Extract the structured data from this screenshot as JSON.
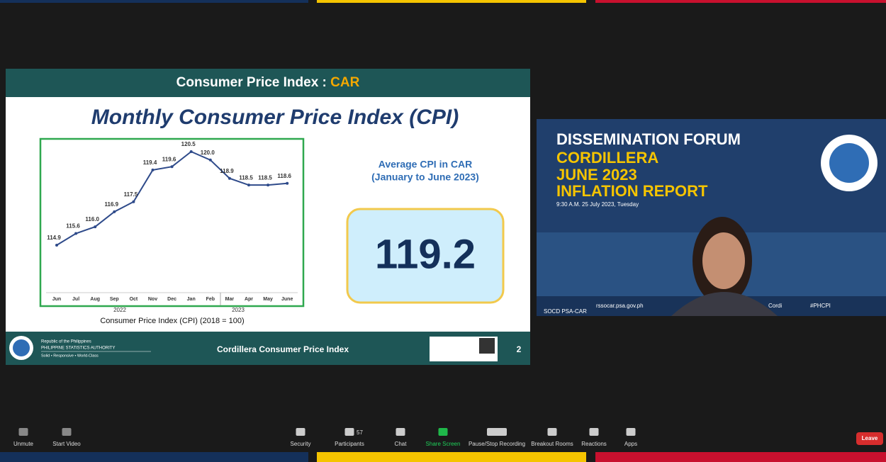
{
  "slide": {
    "header_title": "Consumer Price Index : ",
    "header_highlight": "CAR",
    "title": "Monthly Consumer Price Index (CPI)",
    "chart": {
      "type": "line",
      "categories": [
        "Jun",
        "Jul",
        "Aug",
        "Sep",
        "Oct",
        "Nov",
        "Dec",
        "Jan",
        "Feb",
        "Mar",
        "Apr",
        "May",
        "June"
      ],
      "values": [
        114.9,
        115.6,
        116.0,
        116.9,
        117.5,
        119.4,
        119.6,
        120.5,
        120.0,
        118.9,
        118.5,
        118.5,
        118.6
      ],
      "value_labels": [
        "114.9",
        "115.6",
        "116.0",
        "116.9",
        "117.5",
        "119.4",
        "119.6",
        "120.5",
        "120.0",
        "118.9",
        "118.5",
        "118.5",
        "118.6"
      ],
      "color": "#2e4a8a",
      "year_labels": [
        "2022",
        "2023"
      ],
      "x_label": "Consumer Price Index (CPI) (2018 = 100)"
    },
    "average_title": "Average  CPI in CAR",
    "average_period": "(January to June 2023)",
    "average_value": 119.2,
    "org_line1": "Republic of the Philippines",
    "org_line2": "PHILIPPINE STATISTICS AUTHORITY",
    "org_tagline": "Solid • Responsive • World-Class",
    "footer_title": "Cordillera Consumer Price Index",
    "page_number": 2
  },
  "video": {
    "line1": "DISSEMINATION FORUM",
    "line2": "CORDILLERA",
    "line3": "JUNE 2023",
    "line4": "INFLATION REPORT",
    "datetime": "9:30 A.M. 25 July 2023, Tuesday",
    "website": "rssocar.psa.gov.ph",
    "fb": "Cordi",
    "hashtag": "#PHCPI",
    "participant_name": "SOCD PSA-CAR"
  },
  "toolbar": {
    "unmute": "Unmute",
    "start_video": "Start Video",
    "security": "Security",
    "participants": "Participants",
    "participant_count": 57,
    "chat": "Chat",
    "share_screen": "Share Screen",
    "recording": "Pause/Stop Recording",
    "breakout": "Breakout Rooms",
    "reactions": "Reactions",
    "apps": "Apps",
    "leave": "Leave"
  }
}
